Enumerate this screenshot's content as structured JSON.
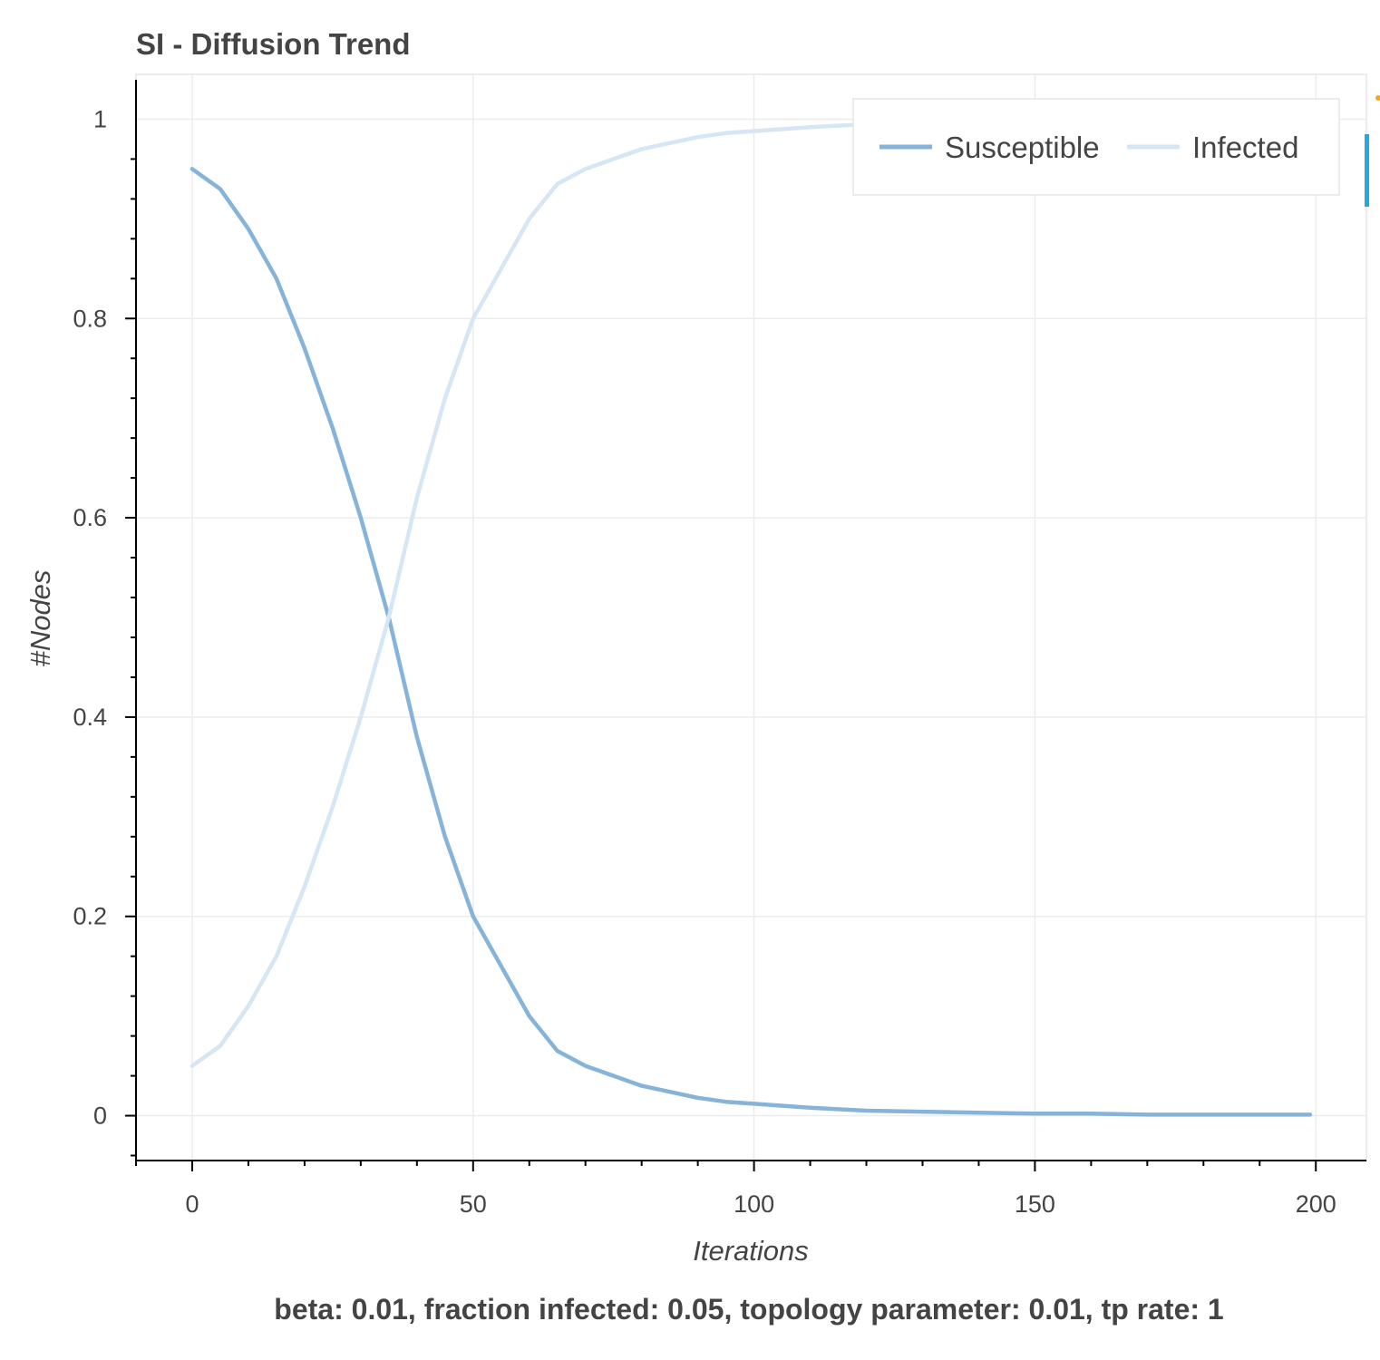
{
  "chart_data": {
    "type": "line",
    "title": "SI - Diffusion Trend",
    "subtitle": "beta: 0.01, fraction infected: 0.05, topology parameter: 0.01, tp rate: 1",
    "xlabel": "Iterations",
    "ylabel": "#Nodes",
    "xlim": [
      -10,
      209
    ],
    "ylim": [
      -0.045,
      1.045
    ],
    "xticks": [
      0,
      50,
      100,
      150,
      200
    ],
    "xtick_labels": [
      "0",
      "50",
      "100",
      "150",
      "200"
    ],
    "yticks": [
      0,
      0.2,
      0.4,
      0.6,
      0.8,
      1
    ],
    "ytick_labels": [
      "0",
      "0.2",
      "0.4",
      "0.6",
      "0.8",
      "1"
    ],
    "grid": true,
    "legend_position": "top-right",
    "series": [
      {
        "name": "Susceptible",
        "color": "#86b3d9",
        "x": [
          0,
          5,
          10,
          15,
          20,
          25,
          30,
          35,
          40,
          45,
          50,
          55,
          60,
          65,
          70,
          75,
          80,
          85,
          90,
          95,
          100,
          110,
          120,
          130,
          140,
          150,
          160,
          170,
          180,
          190,
          199
        ],
        "y": [
          0.95,
          0.93,
          0.89,
          0.84,
          0.77,
          0.69,
          0.6,
          0.5,
          0.38,
          0.28,
          0.2,
          0.15,
          0.1,
          0.065,
          0.05,
          0.04,
          0.03,
          0.024,
          0.018,
          0.014,
          0.012,
          0.008,
          0.005,
          0.004,
          0.003,
          0.002,
          0.002,
          0.001,
          0.001,
          0.001,
          0.001
        ]
      },
      {
        "name": "Infected",
        "color": "#d6e6f5",
        "x": [
          0,
          5,
          10,
          15,
          20,
          25,
          30,
          35,
          40,
          45,
          50,
          55,
          60,
          65,
          70,
          75,
          80,
          85,
          90,
          95,
          100,
          110,
          120,
          130,
          140,
          150,
          160,
          170,
          180,
          190,
          199
        ],
        "y": [
          0.05,
          0.07,
          0.11,
          0.16,
          0.23,
          0.31,
          0.4,
          0.5,
          0.62,
          0.72,
          0.8,
          0.85,
          0.9,
          0.935,
          0.95,
          0.96,
          0.97,
          0.976,
          0.982,
          0.986,
          0.988,
          0.992,
          0.995,
          0.996,
          0.997,
          0.998,
          0.998,
          0.999,
          0.999,
          0.999,
          0.999
        ]
      }
    ]
  }
}
